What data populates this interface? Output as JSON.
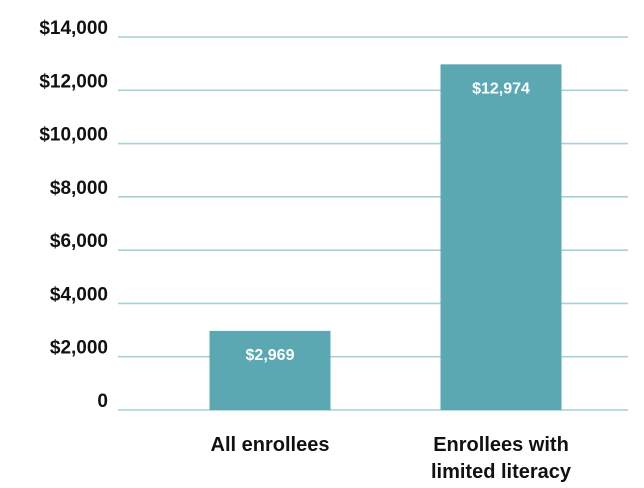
{
  "chart_data": {
    "type": "bar",
    "title": "",
    "xlabel": "",
    "ylabel": "",
    "categories": [
      "All enrollees",
      "Enrollees with limited literacy"
    ],
    "category_lines": [
      [
        "All enrollees"
      ],
      [
        "Enrollees with",
        "limited literacy"
      ]
    ],
    "values": [
      2969,
      12974
    ],
    "data_labels": [
      "$2,969",
      "$12,974"
    ],
    "ylim": [
      0,
      14000
    ],
    "yticks": [
      0,
      2000,
      4000,
      6000,
      8000,
      10000,
      12000,
      14000
    ],
    "ytick_labels": [
      "0",
      "$2,000",
      "$4,000",
      "$6,000",
      "$8,000",
      "$10,000",
      "$12,000",
      "$14,000"
    ],
    "grid": true,
    "legend": "none",
    "colors": {
      "bar": "#5ba8b2",
      "grid": "#a9d0d4",
      "text": "#111111",
      "data_label": "#ffffff"
    }
  }
}
